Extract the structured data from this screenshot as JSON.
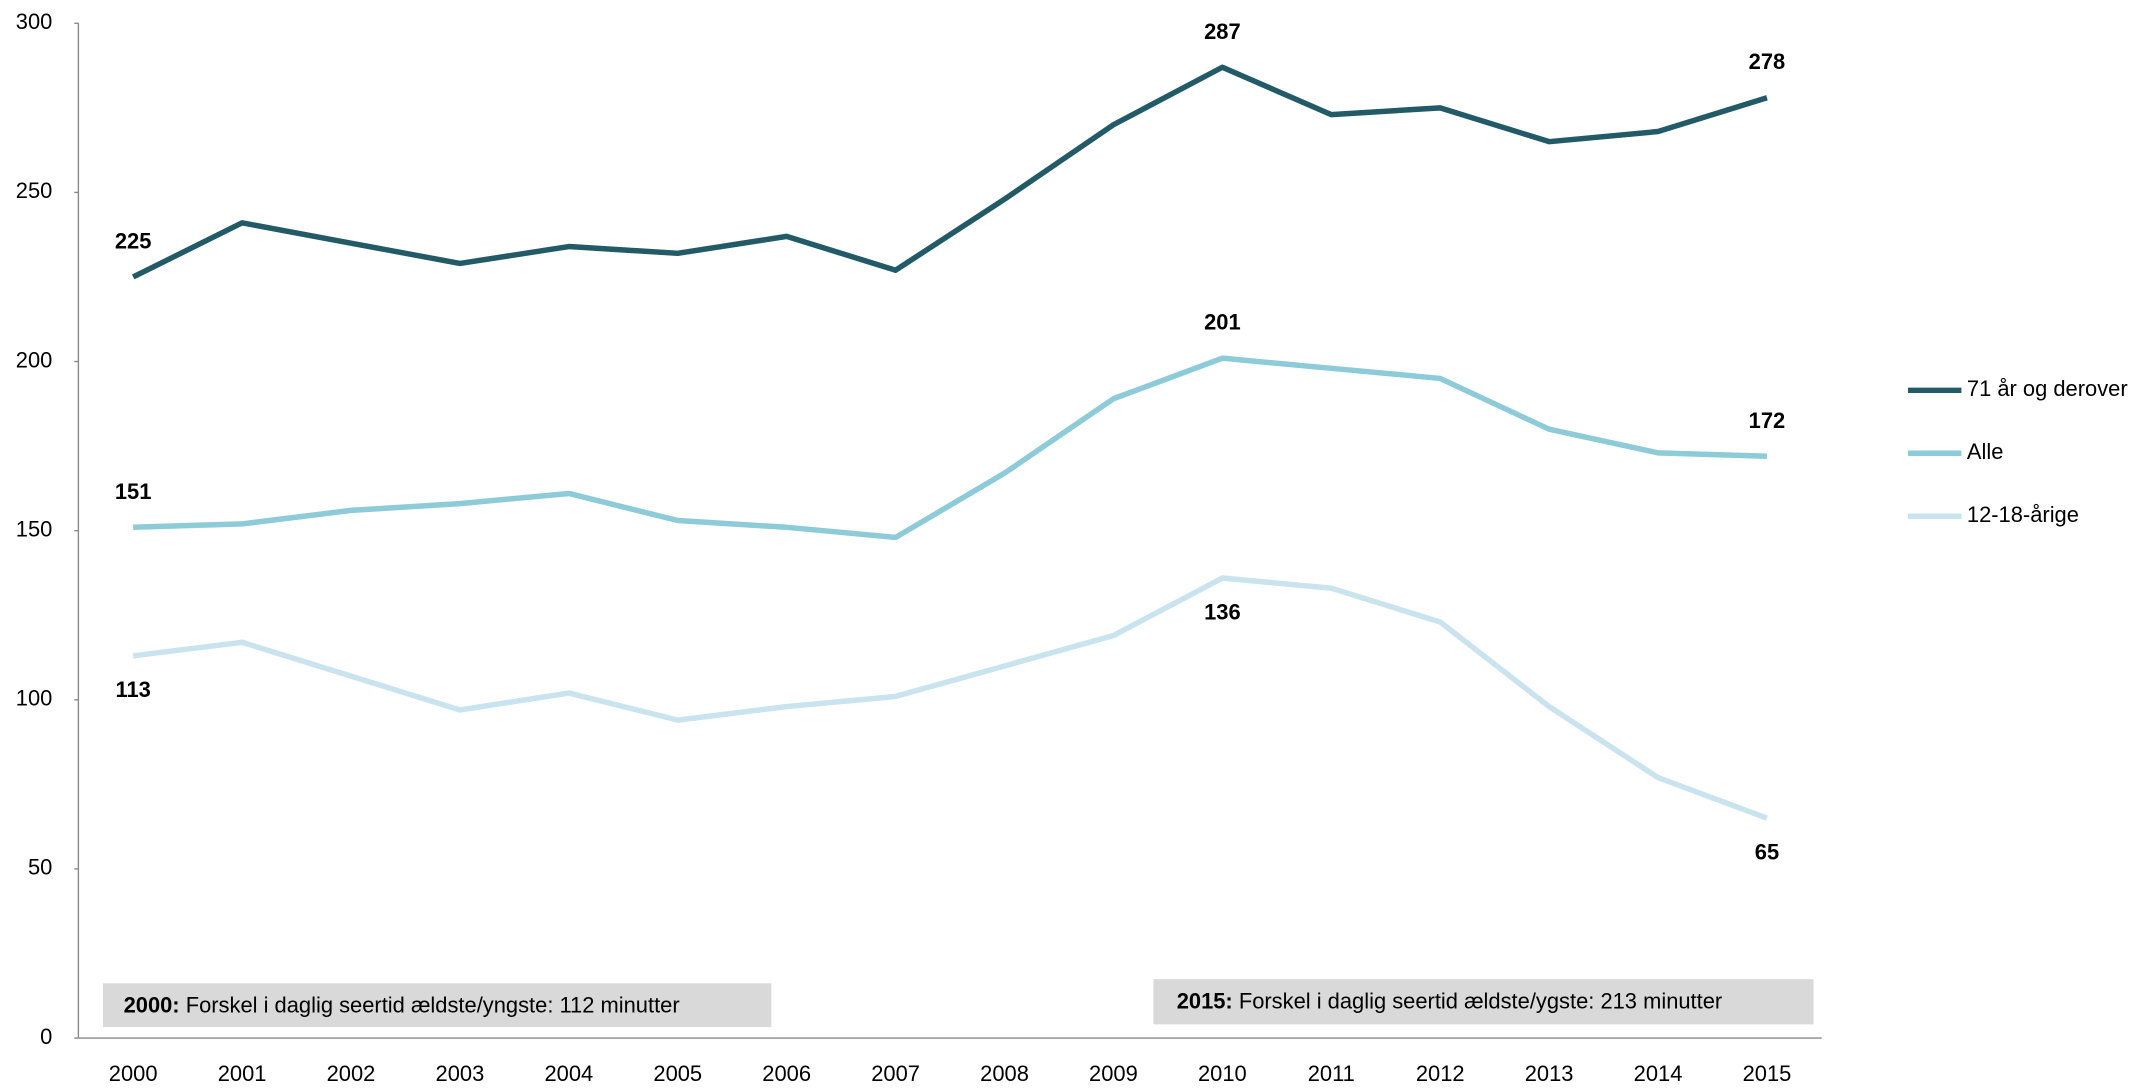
{
  "chart_data": {
    "type": "line",
    "x": [
      "2000",
      "2001",
      "2002",
      "2003",
      "2004",
      "2005",
      "2006",
      "2007",
      "2008",
      "2009",
      "2010",
      "2011",
      "2012",
      "2013",
      "2014",
      "2015"
    ],
    "series": [
      {
        "name": "71 år og derover",
        "color": "#235a67",
        "values": [
          225,
          241,
          235,
          229,
          234,
          232,
          237,
          227,
          248,
          270,
          287,
          273,
          275,
          265,
          268,
          278
        ]
      },
      {
        "name": "Alle",
        "color": "#8ccbd7",
        "values": [
          151,
          152,
          156,
          158,
          161,
          153,
          151,
          148,
          167,
          189,
          201,
          198,
          195,
          180,
          173,
          172
        ]
      },
      {
        "name": "12-18-årige",
        "color": "#c9e3ef",
        "values": [
          113,
          117,
          107,
          97,
          102,
          94,
          98,
          101,
          110,
          119,
          136,
          133,
          123,
          98,
          77,
          65
        ]
      }
    ],
    "ylim": [
      0,
      300
    ],
    "yticks": [
      0,
      50,
      100,
      150,
      200,
      250,
      300
    ],
    "grid": false,
    "legend": "right",
    "annotations": [
      {
        "bold": "2000:",
        "text": "Forskel i daglig seertid ældste/yngste: 112 minutter"
      },
      {
        "bold": "2015:",
        "text": "Forskel i daglig seertid ældste/ygste: 213 minutter"
      }
    ]
  }
}
